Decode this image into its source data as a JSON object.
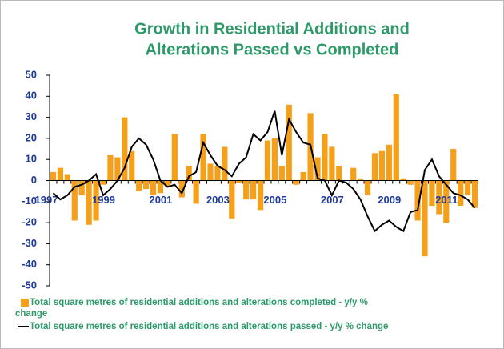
{
  "chart_data": {
    "type": "bar_line",
    "title": [
      "Growth in Residential Additions and",
      "Alterations Passed vs Completed"
    ],
    "categories": [
      "1997",
      null,
      null,
      null,
      null,
      null,
      null,
      null,
      "1999",
      null,
      null,
      null,
      null,
      null,
      null,
      null,
      "2001",
      null,
      null,
      null,
      null,
      null,
      null,
      null,
      "2003",
      null,
      null,
      null,
      null,
      null,
      null,
      null,
      "2005",
      null,
      null,
      null,
      null,
      null,
      null,
      null,
      "2007",
      null,
      null,
      null,
      null,
      null,
      null,
      null,
      "2009",
      null,
      null,
      null,
      null,
      null,
      null,
      null,
      "2011",
      null,
      null,
      null
    ],
    "series": [
      {
        "name": "Total square metres of residential additions and alterations completed - y/y % change",
        "kind": "bar",
        "color": "#f5a01a",
        "values": [
          4,
          6,
          3,
          -19,
          -7,
          -21,
          -19,
          -2,
          12,
          11,
          30,
          14,
          -5,
          -4,
          -7,
          -6,
          -3,
          22,
          -8,
          7,
          -11,
          22,
          8,
          7,
          16,
          -18,
          -1,
          -9,
          -9,
          -14,
          19,
          20,
          7,
          36,
          -2,
          4,
          32,
          11,
          22,
          16,
          7,
          0,
          6,
          1,
          -7,
          13,
          14,
          17,
          41,
          1,
          -2,
          -19,
          -36,
          -12,
          -16,
          -20,
          15,
          -12,
          -7,
          -13
        ]
      },
      {
        "name": "Total square metres of residential additions and alterations passed - y/y % change",
        "kind": "line",
        "color": "#000000",
        "values": [
          -6,
          -9,
          -7,
          -3,
          -2,
          0,
          3,
          -7,
          -4,
          0,
          6,
          16,
          20,
          17,
          10,
          0,
          -3,
          -2,
          -6,
          2,
          4,
          18,
          12,
          7,
          5,
          2,
          8,
          11,
          22,
          19,
          23,
          33,
          12,
          29,
          23,
          18,
          17,
          1,
          0,
          -7,
          0,
          -1,
          -4,
          -9,
          -17,
          -24,
          -21,
          -19,
          -22,
          -24,
          -15,
          -14,
          5,
          10,
          2,
          -2,
          -6,
          -7,
          -9,
          -13
        ]
      }
    ],
    "ylim": [
      -50,
      50
    ],
    "yticks": [
      -50,
      -40,
      -30,
      -20,
      -10,
      0,
      10,
      20,
      30,
      40,
      50
    ]
  }
}
